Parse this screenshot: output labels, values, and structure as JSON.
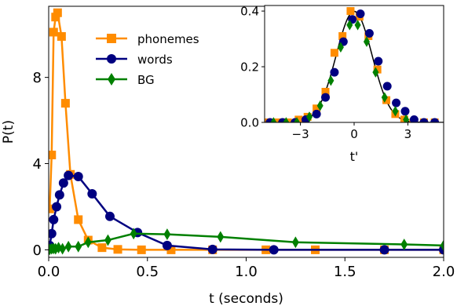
{
  "chart_data": [
    {
      "type": "line",
      "xlabel": "t (seconds)",
      "ylabel": "P(t)",
      "xlim": [
        0,
        2.0
      ],
      "ylim": [
        -0.35,
        11.3
      ],
      "xticks": [
        0.0,
        0.5,
        1.0,
        1.5,
        2.0
      ],
      "xtick_labels": [
        "0.0",
        "0.5",
        "1.0",
        "1.5",
        "2.0"
      ],
      "yticks": [
        0,
        4,
        8
      ],
      "ytick_labels": [
        "0",
        "4",
        "8"
      ],
      "legend": "upper-center",
      "grid": false,
      "series": [
        {
          "name": "phonemes",
          "color": "#ff8c00",
          "marker": "square",
          "x": [
            0.005,
            0.015,
            0.025,
            0.035,
            0.045,
            0.065,
            0.085,
            0.11,
            0.15,
            0.2,
            0.27,
            0.35,
            0.47,
            0.62,
            0.83,
            1.1,
            1.35,
            1.7,
            2.0
          ],
          "y": [
            1.9,
            4.4,
            10.1,
            10.8,
            11.0,
            9.9,
            6.8,
            3.5,
            1.4,
            0.45,
            0.1,
            0.02,
            0.0,
            0.0,
            0.0,
            0.0,
            0.0,
            0.0,
            0.0
          ]
        },
        {
          "name": "words",
          "color": "#000080",
          "marker": "circle",
          "x": [
            0.005,
            0.015,
            0.025,
            0.04,
            0.055,
            0.075,
            0.1,
            0.15,
            0.22,
            0.31,
            0.45,
            0.6,
            0.83,
            1.14,
            1.7,
            2.0
          ],
          "y": [
            0.2,
            0.75,
            1.4,
            2.0,
            2.55,
            3.1,
            3.45,
            3.4,
            2.6,
            1.55,
            0.8,
            0.2,
            0.02,
            0.0,
            0.0,
            0.0
          ],
          "axis": "main"
        },
        {
          "name": "BG",
          "color": "#008000",
          "marker": "diamond",
          "x": [
            0.005,
            0.015,
            0.025,
            0.035,
            0.05,
            0.07,
            0.1,
            0.15,
            0.2,
            0.3,
            0.43,
            0.6,
            0.87,
            1.25,
            1.8,
            2.0
          ],
          "y": [
            0.02,
            0.05,
            0.06,
            0.05,
            0.1,
            0.05,
            0.15,
            0.15,
            0.35,
            0.45,
            0.75,
            0.72,
            0.6,
            0.35,
            0.25,
            0.2
          ]
        }
      ]
    },
    {
      "type": "scatter",
      "xlabel": "t'",
      "ylabel": "",
      "xlim": [
        -5,
        5
      ],
      "ylim": [
        0,
        0.42
      ],
      "xticks": [
        -3,
        0,
        3
      ],
      "xtick_labels": [
        "−3",
        "0",
        "3"
      ],
      "yticks": [
        0.0,
        0.2,
        0.4
      ],
      "ytick_labels": [
        "0.0",
        "0.2",
        "0.4"
      ],
      "grid": false,
      "curve": {
        "type": "gaussian",
        "mean": 0,
        "std": 1,
        "color": "#000000"
      },
      "series": [
        {
          "name": "phonemes",
          "color": "#ff8c00",
          "marker": "square",
          "x": [
            -4.9,
            -4.3,
            -3.7,
            -3.1,
            -2.6,
            -2.1,
            -1.6,
            -1.1,
            -0.65,
            -0.2,
            0.3,
            0.8,
            1.3,
            1.8,
            2.3,
            2.8,
            3.3,
            3.9,
            4.5
          ],
          "y": [
            0.0,
            0.0,
            0.0,
            0.01,
            0.02,
            0.05,
            0.11,
            0.25,
            0.31,
            0.4,
            0.38,
            0.31,
            0.19,
            0.08,
            0.03,
            0.01,
            0.0,
            0.0,
            0.0
          ]
        },
        {
          "name": "words",
          "color": "#000080",
          "marker": "circle",
          "x": [
            -4.7,
            -4.0,
            -3.3,
            -2.7,
            -2.1,
            -1.6,
            -1.1,
            -0.6,
            -0.1,
            0.35,
            0.85,
            1.35,
            1.85,
            2.35,
            2.85,
            3.35,
            3.9,
            4.5
          ],
          "y": [
            0.0,
            0.0,
            0.0,
            0.01,
            0.03,
            0.09,
            0.18,
            0.29,
            0.37,
            0.39,
            0.32,
            0.22,
            0.13,
            0.07,
            0.04,
            0.01,
            0.0,
            0.0
          ]
        },
        {
          "name": "BG",
          "color": "#008000",
          "marker": "diamond",
          "x": [
            -4.5,
            -3.8,
            -3.2,
            -2.5,
            -1.9,
            -1.3,
            -0.75,
            -0.25,
            0.2,
            0.7,
            1.2,
            1.7,
            2.3,
            2.9
          ],
          "y": [
            0.0,
            0.0,
            0.0,
            0.02,
            0.06,
            0.15,
            0.27,
            0.35,
            0.35,
            0.29,
            0.18,
            0.09,
            0.04,
            0.01
          ]
        }
      ]
    }
  ]
}
